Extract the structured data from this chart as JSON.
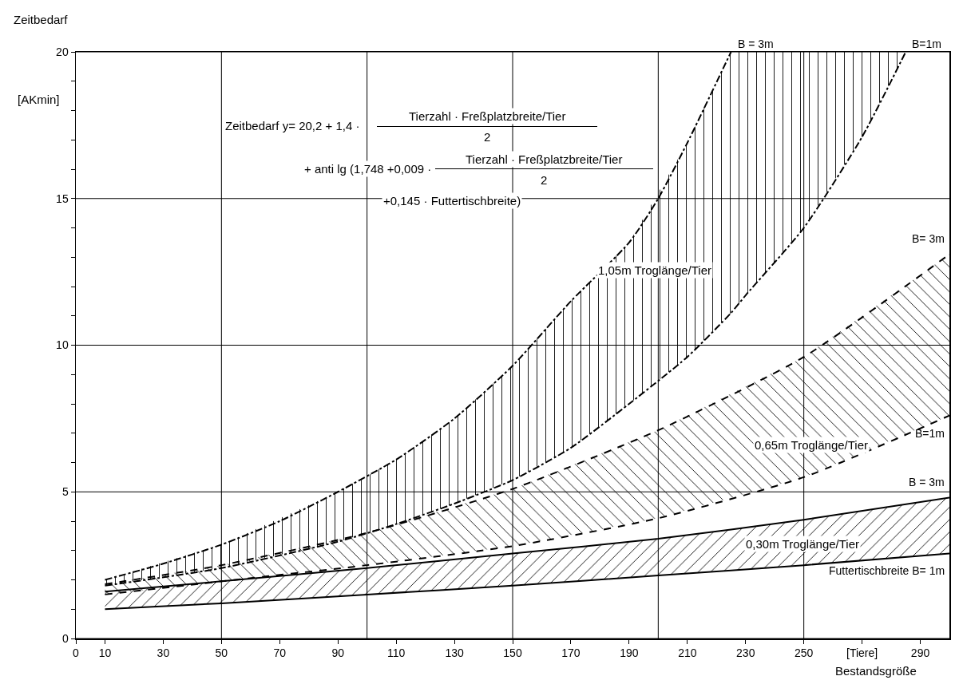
{
  "chart_data": {
    "type": "line",
    "xlabel": "Bestandsgröße",
    "ylabel": "Zeitbedarf",
    "xlim": [
      0,
      300
    ],
    "ylim": [
      0,
      20
    ],
    "xticks": [
      0,
      10,
      30,
      50,
      70,
      90,
      110,
      130,
      150,
      170,
      190,
      210,
      230,
      250,
      {
        "value": 270,
        "label": "[Tiere]"
      },
      290
    ],
    "yticks": [
      0,
      {
        "value": 1,
        "label": null
      },
      {
        "value": 2,
        "label": null
      },
      {
        "value": 3,
        "label": null
      },
      {
        "value": 4,
        "label": null
      },
      5,
      {
        "value": 6,
        "label": null
      },
      {
        "value": 7,
        "label": null
      },
      {
        "value": 8,
        "label": null
      },
      {
        "value": 9,
        "label": null
      },
      10,
      {
        "value": 11,
        "label": null
      },
      {
        "value": 12,
        "label": null
      },
      {
        "value": 13,
        "label": null
      },
      {
        "value": 14,
        "label": null
      },
      15,
      {
        "value": 16,
        "label": null
      },
      {
        "value": 17,
        "label": null
      },
      {
        "value": 18,
        "label": null
      },
      {
        "value": 19,
        "label": null
      },
      20
    ],
    "grid": "y",
    "legend": false,
    "series": [
      {
        "name": "Futtertischbreite B= 1m",
        "color": "#000000",
        "line_style": "solid",
        "x": [
          10,
          50,
          100,
          150,
          200,
          250,
          300
        ],
        "values": [
          1.0,
          1.2,
          1.5,
          1.8,
          2.15,
          2.5,
          2.9
        ],
        "lower": [
          1.0,
          1.2,
          1.5,
          1.8,
          2.15,
          2.5,
          2.9
        ],
        "upper": [
          1.6,
          1.95,
          2.4,
          2.9,
          3.4,
          4.05,
          4.8
        ]
      },
      {
        "name": "B = 3m",
        "color": "#000000",
        "line_style": "solid",
        "x": [
          10,
          50,
          100,
          150,
          200,
          250,
          300
        ],
        "values": [
          1.6,
          1.95,
          2.4,
          2.9,
          3.4,
          4.05,
          4.8
        ]
      },
      {
        "name": "B=1m",
        "color": "#000000",
        "line_style": "dashed",
        "x": [
          10,
          50,
          100,
          150,
          200,
          250,
          300
        ],
        "values": [
          1.5,
          1.95,
          2.5,
          3.15,
          4.1,
          5.5,
          7.6
        ],
        "lower": [
          1.5,
          1.95,
          2.5,
          3.15,
          4.1,
          5.5,
          7.6
        ],
        "upper": [
          1.85,
          2.5,
          3.6,
          5.1,
          7.1,
          9.6,
          13.1
        ]
      },
      {
        "name": "B= 3m",
        "color": "#000000",
        "line_style": "dashed",
        "x": [
          10,
          50,
          100,
          150,
          200,
          250,
          300
        ],
        "values": [
          1.85,
          2.5,
          3.6,
          5.1,
          7.1,
          9.6,
          13.1
        ]
      },
      {
        "name": "B=1m",
        "color": "#000000",
        "line_style": "dashdot",
        "x": [
          10,
          50,
          90,
          110,
          130,
          150,
          170,
          190,
          210,
          225,
          230,
          250,
          270,
          285
        ],
        "values": [
          1.8,
          2.4,
          3.3,
          3.9,
          4.6,
          5.4,
          6.5,
          8.0,
          9.6,
          11.1,
          11.7,
          14.0,
          17.1,
          20
        ],
        "lower": [
          1.8,
          2.4,
          3.3,
          3.9,
          4.6,
          5.4,
          6.5,
          8.0,
          9.6,
          11.1,
          11.7,
          14.0,
          17.1,
          20
        ],
        "upper": [
          2.0,
          3.2,
          5.0,
          6.1,
          7.5,
          9.3,
          11.5,
          13.5,
          16.9,
          20,
          20,
          20,
          20,
          20
        ]
      },
      {
        "name": "B = 3m",
        "color": "#000000",
        "line_style": "dashdot",
        "x": [
          10,
          30,
          50,
          70,
          90,
          110,
          130,
          150,
          170,
          190,
          200,
          210,
          225
        ],
        "values": [
          2.0,
          2.55,
          3.2,
          4.0,
          5.0,
          6.1,
          7.5,
          9.3,
          11.5,
          13.5,
          15.0,
          16.9,
          20
        ]
      }
    ],
    "ref_lines": [
      {
        "axis": "x",
        "value": 50,
        "color": "#000000"
      },
      {
        "axis": "x",
        "value": 100,
        "color": "#000000"
      },
      {
        "axis": "x",
        "value": 150,
        "color": "#000000"
      },
      {
        "axis": "x",
        "value": 200,
        "color": "#000000"
      },
      {
        "axis": "x",
        "value": 250,
        "color": "#000000"
      }
    ],
    "annotations": [
      "[AKmin]",
      "Zeitbedarf y= 20,2 + 1,4 ·",
      "Tierzahl · Freßplatzbreite/Tier",
      "2",
      "+ anti lg (1,748 +0,009 ·",
      "Tierzahl · Freßplatzbreite/Tier",
      "2",
      "+0,145 · Futtertischbreite)",
      "1,05m Troglänge/Tier",
      "0,65m Troglänge/Tier",
      "0,30m Troglänge/Tier"
    ]
  }
}
